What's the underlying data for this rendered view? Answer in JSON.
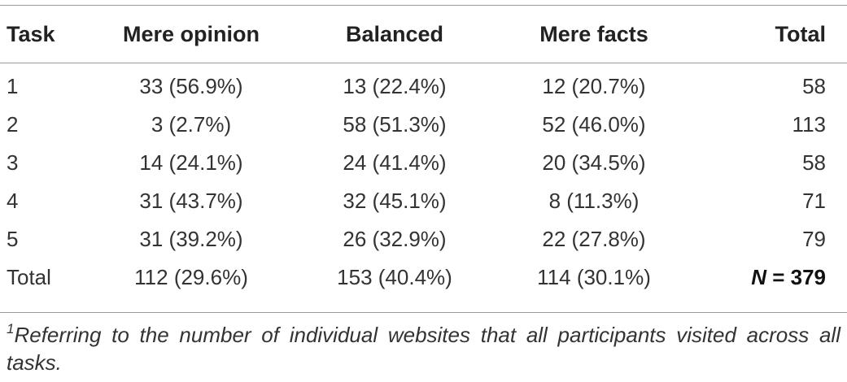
{
  "table": {
    "headers": [
      "Task",
      "Mere opinion",
      "Balanced",
      "Mere facts",
      "Total"
    ],
    "rows": [
      [
        "1",
        "33 (56.9%)",
        "13 (22.4%)",
        "12 (20.7%)",
        "58"
      ],
      [
        "2",
        "3 (2.7%)",
        "58 (51.3%)",
        "52 (46.0%)",
        "113"
      ],
      [
        "3",
        "14 (24.1%)",
        "24 (41.4%)",
        "20 (34.5%)",
        "58"
      ],
      [
        "4",
        "31 (43.7%)",
        "32 (45.1%)",
        "8 (11.3%)",
        "71"
      ],
      [
        "5",
        "31 (39.2%)",
        "26 (32.9%)",
        "22 (27.8%)",
        "79"
      ]
    ],
    "total_row": {
      "label": "Total",
      "mere_opinion": "112 (29.6%)",
      "balanced": "153 (40.4%)",
      "mere_facts": "114 (30.1%)",
      "n_symbol": "N",
      "n_value": " = 379"
    }
  },
  "footnote": {
    "marker": "1",
    "text": "Referring to the number of individual websites that all participants visited across all tasks."
  }
}
